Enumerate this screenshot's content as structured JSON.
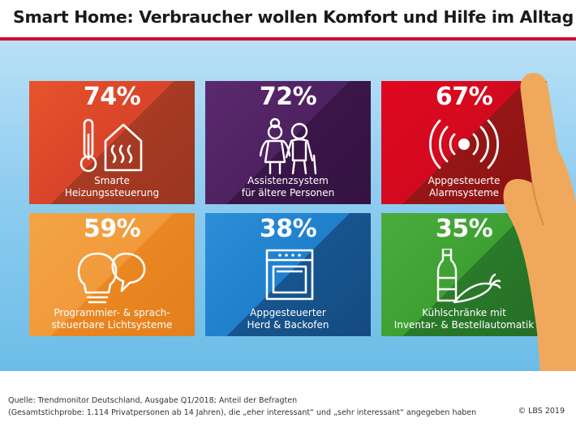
{
  "header": {
    "title": "Smart Home: Verbraucher wollen Komfort und Hilfe im Alltag"
  },
  "tiles": [
    {
      "percent": "74%",
      "value": 74,
      "label_line1": "Smarte",
      "label_line2": "Heizungssteuerung",
      "icon": "thermometer-house-icon",
      "color": "#e6542b"
    },
    {
      "percent": "72%",
      "value": 72,
      "label_line1": "Assistenzsystem",
      "label_line2": "für ältere Personen",
      "icon": "elderly-couple-icon",
      "color": "#5b2a6f"
    },
    {
      "percent": "67%",
      "value": 67,
      "label_line1": "Appgesteuerte",
      "label_line2": "Alarmsysteme",
      "icon": "alarm-signal-icon",
      "color": "#e0081f"
    },
    {
      "percent": "59%",
      "value": 59,
      "label_line1": "Programmier- & sprach-",
      "label_line2": "steuerbare Lichtsysteme",
      "icon": "lightbulb-speech-icon",
      "color": "#f3a545"
    },
    {
      "percent": "38%",
      "value": 38,
      "label_line1": "Appgesteuerter",
      "label_line2": "Herd & Backofen",
      "icon": "oven-icon",
      "color": "#2c8fd7"
    },
    {
      "percent": "35%",
      "value": 35,
      "label_line1": "Kühlschränke mit",
      "label_line2": "Inventar- & Bestellautomatik",
      "icon": "bottle-carrot-icon",
      "color": "#49ac3c"
    }
  ],
  "footer": {
    "source_line1": "Quelle: Trendmonitor Deutschland, Ausgabe Q1/2018; Anteil der Befragten",
    "source_line2": "(Gesamtstichprobe: 1.114 Privatpersonen ab 14 Jahren), die „eher interessant“ und „sehr interessant“ angegeben haben",
    "copyright": "© LBS 2019"
  },
  "colors": {
    "brand_red": "#d4002c",
    "sky_top": "#b9e0f6",
    "sky_bottom": "#6cbde8",
    "hand": "#f0a95c"
  },
  "decorations": {
    "hand_icon": "pointing-hand-icon"
  }
}
